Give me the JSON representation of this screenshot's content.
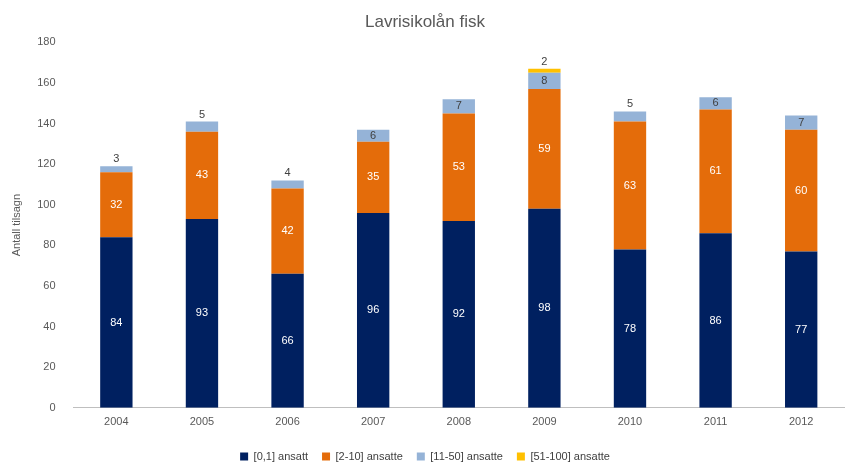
{
  "chart_data": {
    "type": "bar",
    "title": "Lavrisikolån fisk",
    "ylabel": "Antall tilsagn",
    "categories": [
      "2004",
      "2005",
      "2006",
      "2007",
      "2008",
      "2009",
      "2010",
      "2011",
      "2012"
    ],
    "series": [
      {
        "name": "[0,1] ansatt",
        "color": "#002060",
        "values": [
          84,
          93,
          66,
          96,
          92,
          98,
          78,
          86,
          77
        ]
      },
      {
        "name": "[2-10] ansatte",
        "color": "#E46C0A",
        "values": [
          32,
          43,
          42,
          35,
          53,
          59,
          63,
          61,
          60
        ]
      },
      {
        "name": "[11-50] ansatte",
        "color": "#95B3D7",
        "values": [
          3,
          5,
          4,
          6,
          7,
          8,
          5,
          6,
          7
        ]
      },
      {
        "name": "[51-100] ansatte",
        "color": "#FFC000",
        "values": [
          null,
          null,
          null,
          null,
          null,
          2,
          null,
          null,
          null
        ]
      }
    ],
    "ylim": [
      0,
      180
    ],
    "yticks": [
      0,
      20,
      40,
      60,
      80,
      100,
      120,
      140,
      160,
      180
    ],
    "stacked": true,
    "data_labels": true,
    "legend": "bottom",
    "grid": false
  }
}
